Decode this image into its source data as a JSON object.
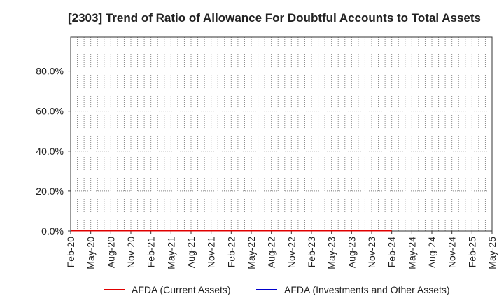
{
  "chart_data": {
    "type": "line",
    "title": "[2303]  Trend of Ratio of Allowance For Doubtful Accounts to Total Assets",
    "xlabel": "",
    "ylabel": "",
    "x_tick_labels": [
      "Feb-20",
      "May-20",
      "Aug-20",
      "Nov-20",
      "Feb-21",
      "May-21",
      "Aug-21",
      "Nov-21",
      "Feb-22",
      "May-22",
      "Aug-22",
      "Nov-22",
      "Feb-23",
      "May-23",
      "Aug-23",
      "Nov-23",
      "Feb-24",
      "May-24",
      "Aug-24",
      "Nov-24",
      "Feb-25",
      "May-25"
    ],
    "y_ticks": [
      0,
      20,
      40,
      60,
      80
    ],
    "y_tick_labels": [
      "0.0%",
      "20.0%",
      "40.0%",
      "60.0%",
      "80.0%"
    ],
    "ylim": [
      0,
      97
    ],
    "x_months": 63,
    "grid": true,
    "grid_style": "dotted",
    "legend_position": "bottom",
    "series": [
      {
        "name": "AFDA (Current Assets)",
        "color": "#e00000",
        "x_start": "Feb-20",
        "x_end": "Feb-24",
        "values": [
          0.1,
          0.1,
          0.1,
          0.1,
          0.1,
          0.1,
          0.1,
          0.1,
          0.1,
          0.1,
          0.1,
          0.1,
          0.1,
          0.1,
          0.1,
          0.1,
          0.1
        ]
      },
      {
        "name": "AFDA (Investments and Other Assets)",
        "color": "#0000cc",
        "values": []
      }
    ]
  }
}
